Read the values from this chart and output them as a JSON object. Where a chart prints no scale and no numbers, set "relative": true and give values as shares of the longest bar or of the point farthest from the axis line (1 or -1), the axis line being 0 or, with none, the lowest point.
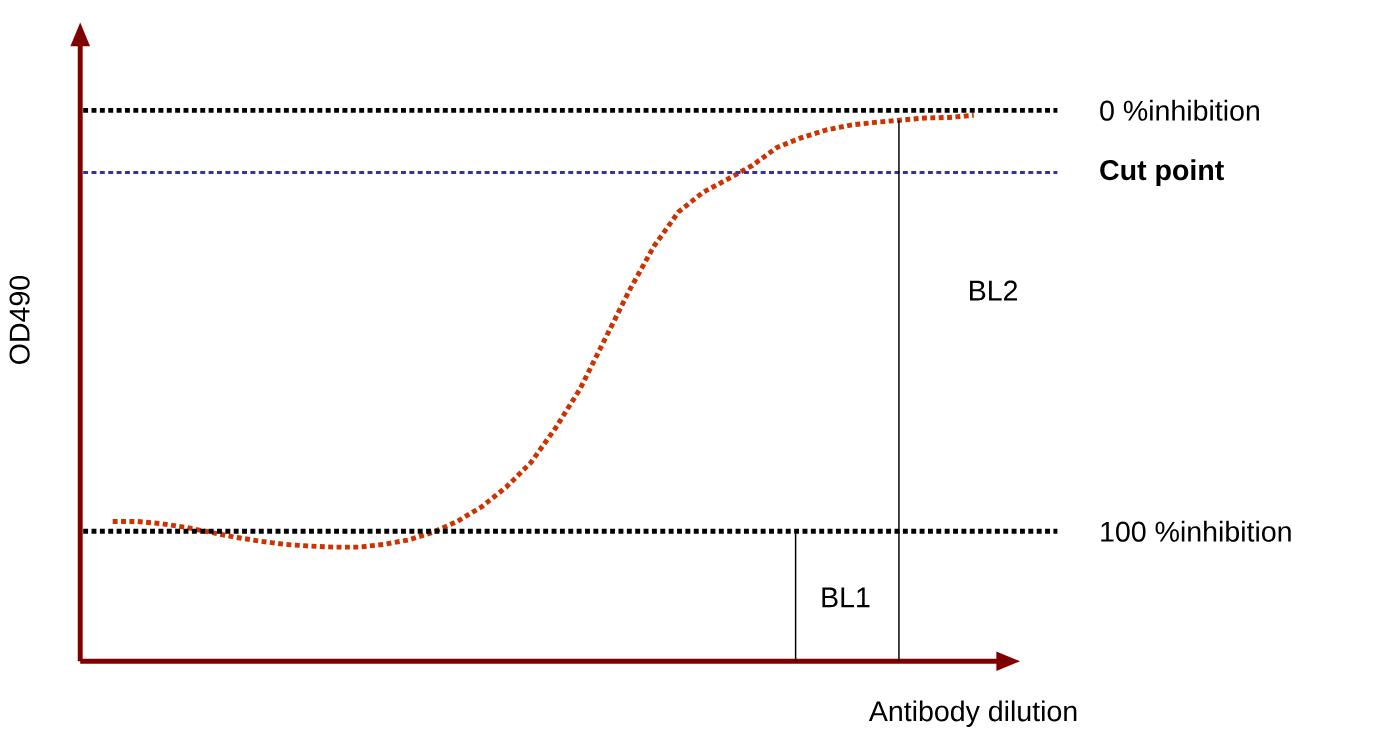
{
  "chart_data": {
    "type": "line",
    "relative": true,
    "xlabel": "Antibody dilution",
    "ylabel": "OD490",
    "categories": [
      null,
      null,
      null,
      null,
      null,
      null,
      null,
      null,
      null,
      null,
      null,
      null,
      null,
      null,
      null,
      null,
      null,
      null,
      null,
      null,
      null,
      null,
      null,
      null,
      null,
      null,
      null,
      null,
      null,
      null,
      null,
      null,
      null,
      null,
      null,
      null
    ],
    "series": [
      {
        "color": "#cc3300",
        "line_style": "dotted",
        "values": [
          0.256,
          0.256,
          0.252,
          0.245,
          0.236,
          0.227,
          0.22,
          0.214,
          0.211,
          0.209,
          0.209,
          0.214,
          0.222,
          0.236,
          0.256,
          0.283,
          0.319,
          0.364,
          0.427,
          0.499,
          0.589,
          0.679,
          0.76,
          0.823,
          0.859,
          0.883,
          0.908,
          0.941,
          0.959,
          0.973,
          0.982,
          0.987,
          0.991,
          0.995,
          0.996,
          1
        ]
      }
    ],
    "ref_lines": [
      {
        "axis": "y",
        "value": 1.009,
        "label": "0 %inhibition",
        "color": "#000000",
        "line_style": "dotted"
      },
      {
        "axis": "y",
        "value": 0.895,
        "label": "**Cut point**",
        "color": "#333399",
        "line_style": "dotted"
      },
      {
        "axis": "y",
        "value": 0.238,
        "label": "100 %inhibition",
        "color": "#000000",
        "line_style": "dotted"
      }
    ],
    "annotations": [
      "BL1",
      "BL2"
    ],
    "marker": "none"
  }
}
